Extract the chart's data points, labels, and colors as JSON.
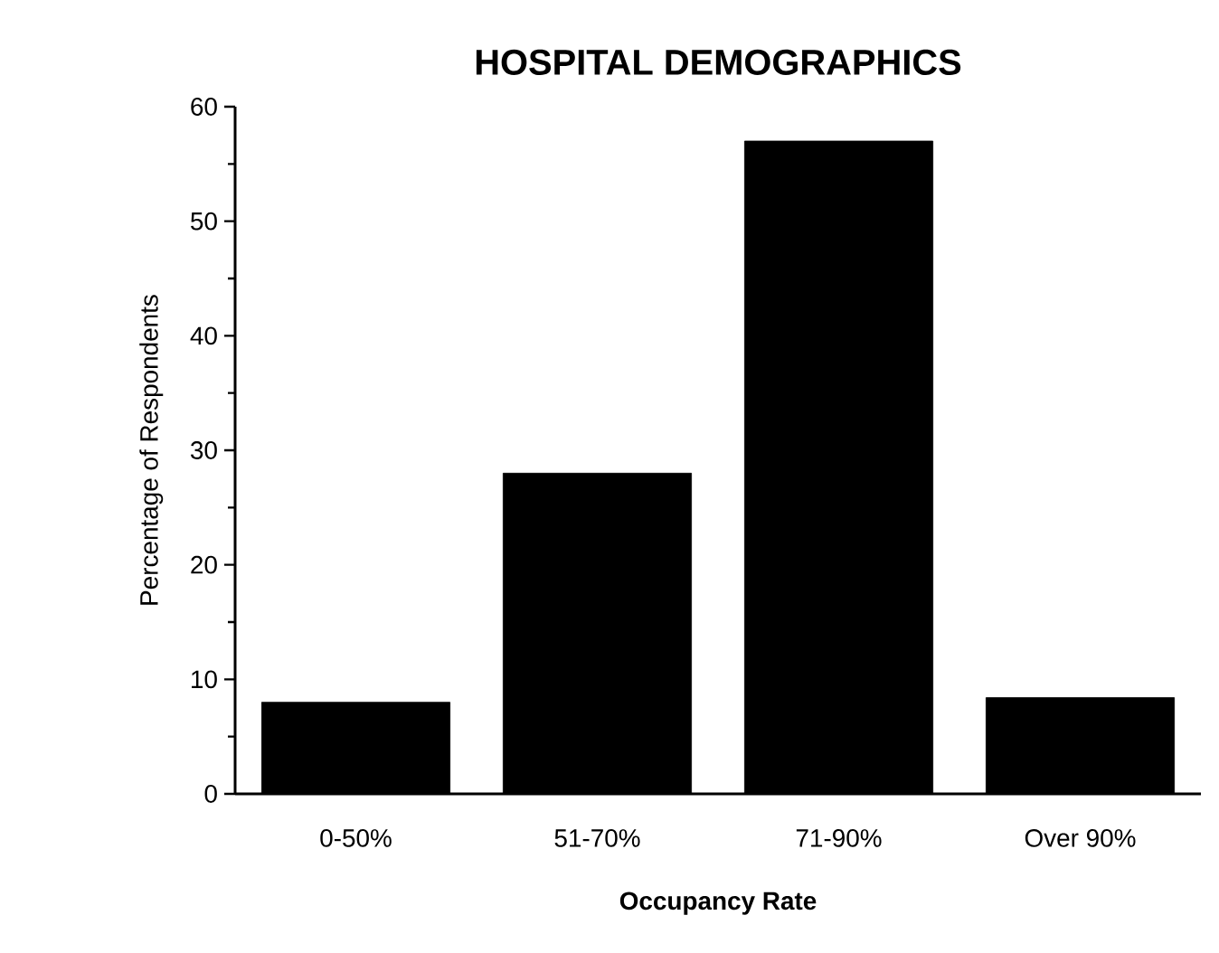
{
  "chart_data": {
    "type": "bar",
    "title": "HOSPITAL DEMOGRAPHICS",
    "xlabel": "Occupancy Rate",
    "ylabel": "Percentage of Respondents",
    "categories": [
      "0-50%",
      "51-70%",
      "71-90%",
      "Over 90%"
    ],
    "values": [
      8,
      28,
      57,
      8.4
    ],
    "color": "#000000",
    "ylim": [
      0,
      60
    ],
    "yticks": [
      0,
      10,
      20,
      30,
      40,
      50,
      60
    ]
  }
}
